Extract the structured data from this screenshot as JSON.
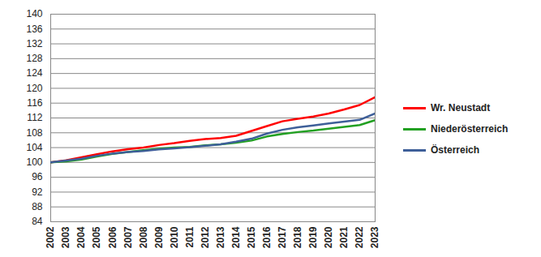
{
  "chart_data": {
    "type": "line",
    "x": [
      2002,
      2003,
      2004,
      2005,
      2006,
      2007,
      2008,
      2009,
      2010,
      2011,
      2012,
      2013,
      2014,
      2015,
      2016,
      2017,
      2018,
      2019,
      2020,
      2021,
      2022,
      2023
    ],
    "series": [
      {
        "name": "Wr. Neustadt",
        "color": "#ff0000",
        "values": [
          100,
          100.6,
          101.4,
          102.2,
          103.0,
          103.6,
          104.0,
          104.7,
          105.2,
          105.8,
          106.3,
          106.6,
          107.2,
          108.5,
          109.8,
          111.1,
          111.8,
          112.4,
          113.2,
          114.3,
          115.5,
          117.6
        ]
      },
      {
        "name": "Niederösterreich",
        "color": "#22a022",
        "values": [
          100,
          100.3,
          100.8,
          101.6,
          102.3,
          102.8,
          103.3,
          103.7,
          104.0,
          104.2,
          104.6,
          104.9,
          105.3,
          105.9,
          107.0,
          107.7,
          108.2,
          108.6,
          109.1,
          109.6,
          110.1,
          111.4
        ]
      },
      {
        "name": "Österreich",
        "color": "#3e5f99",
        "values": [
          100,
          100.5,
          101.0,
          101.8,
          102.4,
          102.8,
          103.1,
          103.5,
          103.8,
          104.1,
          104.5,
          104.9,
          105.6,
          106.4,
          107.8,
          108.8,
          109.5,
          110.0,
          110.5,
          111.0,
          111.5,
          113.2
        ]
      }
    ],
    "xlim": [
      2002,
      2023
    ],
    "xticks": [
      2002,
      2003,
      2004,
      2005,
      2006,
      2007,
      2008,
      2009,
      2010,
      2011,
      2012,
      2013,
      2014,
      2015,
      2016,
      2017,
      2018,
      2019,
      2020,
      2021,
      2022,
      2023
    ],
    "ylim": [
      84,
      140
    ],
    "yticks": [
      84,
      88,
      92,
      96,
      100,
      104,
      108,
      112,
      116,
      120,
      124,
      128,
      132,
      136,
      140
    ],
    "grid": true,
    "legend": "right"
  }
}
